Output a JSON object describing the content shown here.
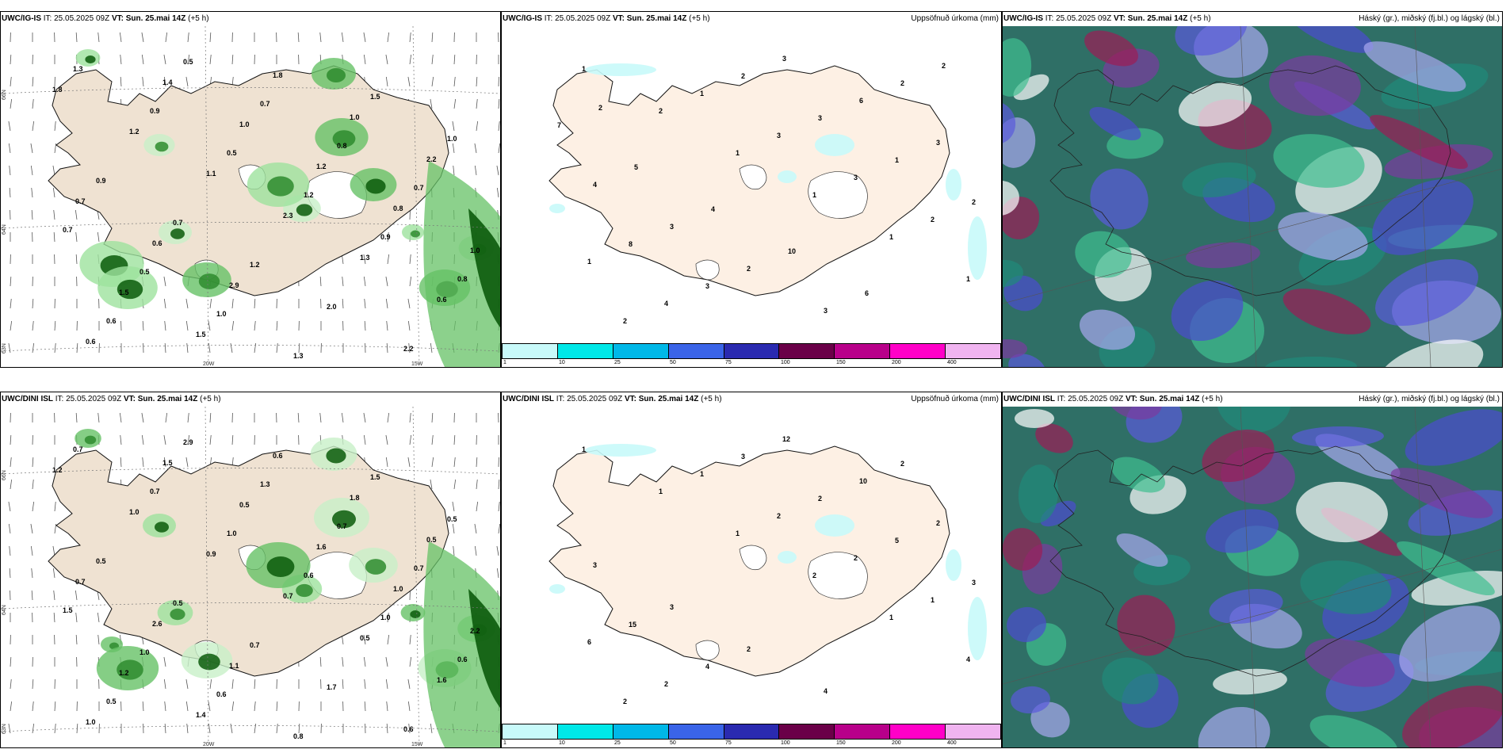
{
  "panels": [
    {
      "model": "UWC/IG-IS",
      "it": "IT: 25.05.2025 09Z",
      "vt_label": "VT:",
      "vt": "Sun. 25.mai 14Z",
      "lead": "(+5 h)",
      "right": ""
    },
    {
      "model": "UWC/IG-IS",
      "it": "IT: 25.05.2025 09Z",
      "vt_label": "VT:",
      "vt": "Sun. 25.mai 14Z",
      "lead": "(+5 h)",
      "right": "Uppsöfnuð úrkoma (mm)"
    },
    {
      "model": "UWC/IG-IS",
      "it": "IT: 25.05.2025 09Z",
      "vt_label": "VT:",
      "vt": "Sun. 25.mai 14Z",
      "lead": "(+5 h)",
      "right": "Háský (gr.), miðský (fj.bl.) og lágský (bl.)"
    },
    {
      "model": "UWC/DINI ISL",
      "it": "IT: 25.05.2025 09Z",
      "vt_label": "VT:",
      "vt": "Sun. 25.mai 14Z",
      "lead": "(+5 h)",
      "right": ""
    },
    {
      "model": "UWC/DINI ISL",
      "it": "IT: 25.05.2025 09Z",
      "vt_label": "VT:",
      "vt": "Sun. 25.mai 14Z",
      "lead": "(+5 h)",
      "right": "Uppsöfnuð úrkoma (mm)"
    },
    {
      "model": "UWC/DINI ISL",
      "it": "IT: 25.05.2025 09Z",
      "vt_label": "VT:",
      "vt": "Sun. 25.mai 14Z",
      "lead": "(+5 h)",
      "right": "Háský (gr.), miðský (fj.bl.) og lágský (bl.)"
    }
  ],
  "axes": {
    "lon_20": "20W",
    "lon_15": "15W",
    "lat_66": "66N",
    "lat_64": "64N",
    "lat_63": "63N"
  },
  "colorbar": {
    "colors": [
      "#c8fafa",
      "#00e8e8",
      "#00b8e8",
      "#3a64e8",
      "#2a2ab0",
      "#6a0048",
      "#b8008a",
      "#ff00c8",
      "#f0b4f0"
    ],
    "ticks": [
      "1",
      "10",
      "25",
      "50",
      "75",
      "100",
      "150",
      "200",
      "400"
    ]
  },
  "precip_labels_top": [
    "1.3",
    "0.9",
    "0.5",
    "1.2",
    "0.9",
    "0.8",
    "0.6",
    "0.5",
    "0.7",
    "0.8",
    "0.7",
    "0.7",
    "0.5",
    "1.0",
    "1.3",
    "1.5",
    "1.0",
    "0.9",
    "0.7",
    "1.2",
    "2.0",
    "2.2",
    "1.8",
    "1.2",
    "1.1",
    "2.3",
    "1.3",
    "0.6",
    "0.6",
    "1.4",
    "1.0",
    "1.2",
    "0.8",
    "1.0",
    "1.5",
    "1.5",
    "1.8",
    "1.0",
    "2.2",
    "0.7",
    "0.6",
    "2.9"
  ],
  "precip_labels_bottom": [
    "0.7",
    "0.7",
    "1.0",
    "0.6",
    "1.0",
    "0.6",
    "0.5",
    "2.9",
    "1.3",
    "0.7",
    "0.7",
    "1.5",
    "1.0",
    "0.6",
    "0.8",
    "1.5",
    "0.5",
    "0.5",
    "0.5",
    "0.7",
    "1.7",
    "0.6",
    "1.2",
    "1.0",
    "0.9",
    "0.7",
    "0.5",
    "1.6",
    "1.0",
    "1.5",
    "0.5",
    "1.6",
    "1.0",
    "2.2",
    "1.2",
    "1.4",
    "0.6",
    "1.8",
    "0.5",
    "0.7",
    "2.6",
    "1.1"
  ],
  "accum_labels_top": [
    "1",
    "2",
    "1",
    "1",
    "1",
    "1",
    "2",
    "1",
    "3",
    "3",
    "2",
    "1",
    "4",
    "2",
    "3",
    "1",
    "2",
    "8",
    "3",
    "3",
    "6",
    "3",
    "4",
    "3",
    "2",
    "3",
    "2",
    "7",
    "5",
    "4",
    "10",
    "6",
    "2",
    "2"
  ],
  "accum_labels_bottom": [
    "1",
    "1",
    "1",
    "2",
    "1",
    "4",
    "2",
    "1",
    "2",
    "2",
    "1",
    "6",
    "2",
    "3",
    "2",
    "5",
    "3",
    "15",
    "4",
    "12",
    "10",
    "2",
    "3",
    "3",
    "2",
    "4",
    "2"
  ]
}
